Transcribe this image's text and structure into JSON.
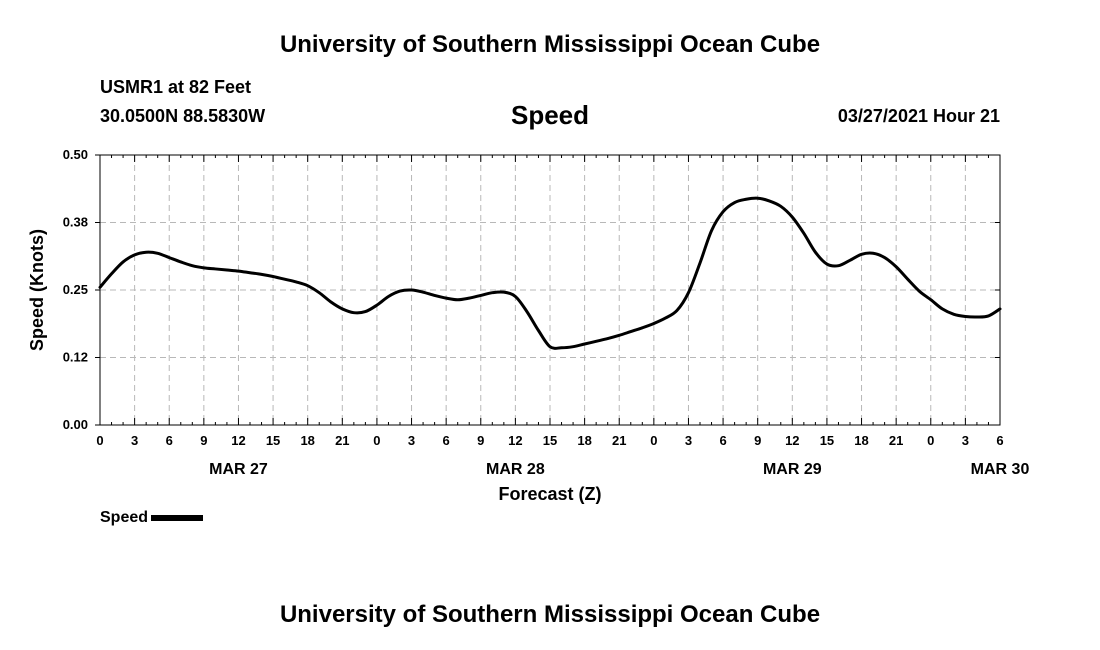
{
  "header": {
    "title": "University of Southern Mississippi Ocean Cube",
    "station": "USMR1 at 82 Feet",
    "coordinates": "30.0500N  88.5830W",
    "variable": "Speed",
    "timestamp": "03/27/2021 Hour 21"
  },
  "footer": {
    "title": "University of Southern Mississippi Ocean Cube"
  },
  "legend": {
    "label": "Speed"
  },
  "colors": {
    "line": "#000000",
    "grid": "#b8b8b8"
  },
  "chart_data": {
    "type": "line",
    "title": "Speed",
    "xlabel": "Forecast (Z)",
    "ylabel": "Speed (Knots)",
    "xlim": [
      0,
      78
    ],
    "ylim": [
      0,
      0.5
    ],
    "grid": true,
    "legend_position": "bottom-left",
    "x_tick_step": 3,
    "x_tick_labels": [
      "0",
      "3",
      "6",
      "9",
      "12",
      "15",
      "18",
      "21",
      "0",
      "3",
      "6",
      "9",
      "12",
      "15",
      "18",
      "21",
      "0",
      "3",
      "6",
      "9",
      "12",
      "15",
      "18",
      "21",
      "0",
      "3",
      "6"
    ],
    "y_ticks": [
      0.0,
      0.125,
      0.25,
      0.375,
      0.5
    ],
    "y_tick_labels": [
      "0.00",
      "0.12",
      "0.25",
      "0.38",
      "0.50"
    ],
    "date_labels": [
      {
        "x": 12,
        "label": "MAR 27"
      },
      {
        "x": 36,
        "label": "MAR 28"
      },
      {
        "x": 60,
        "label": "MAR 29"
      },
      {
        "x": 78,
        "label": "MAR 30"
      }
    ],
    "series": [
      {
        "name": "Speed",
        "x": [
          0,
          1,
          2,
          3,
          4,
          5,
          6,
          7,
          8,
          9,
          10,
          11,
          12,
          13,
          14,
          15,
          16,
          17,
          18,
          19,
          20,
          21,
          22,
          23,
          24,
          25,
          26,
          27,
          28,
          29,
          30,
          31,
          32,
          33,
          34,
          35,
          36,
          37,
          38,
          39,
          40,
          41,
          42,
          43,
          44,
          45,
          46,
          47,
          48,
          49,
          50,
          51,
          52,
          53,
          54,
          55,
          56,
          57,
          58,
          59,
          60,
          61,
          62,
          63,
          64,
          65,
          66,
          67,
          68,
          69,
          70,
          71,
          72,
          73,
          74,
          75,
          76,
          77,
          78
        ],
        "values": [
          0.255,
          0.28,
          0.302,
          0.315,
          0.32,
          0.318,
          0.31,
          0.302,
          0.295,
          0.291,
          0.289,
          0.287,
          0.285,
          0.282,
          0.279,
          0.275,
          0.27,
          0.265,
          0.258,
          0.245,
          0.228,
          0.215,
          0.208,
          0.21,
          0.222,
          0.238,
          0.248,
          0.25,
          0.246,
          0.24,
          0.235,
          0.232,
          0.235,
          0.24,
          0.245,
          0.246,
          0.238,
          0.21,
          0.175,
          0.145,
          0.143,
          0.145,
          0.15,
          0.155,
          0.16,
          0.166,
          0.173,
          0.18,
          0.188,
          0.198,
          0.212,
          0.245,
          0.3,
          0.36,
          0.395,
          0.412,
          0.418,
          0.42,
          0.415,
          0.405,
          0.385,
          0.355,
          0.32,
          0.298,
          0.295,
          0.305,
          0.316,
          0.318,
          0.31,
          0.293,
          0.27,
          0.248,
          0.232,
          0.215,
          0.205,
          0.201,
          0.2,
          0.202,
          0.215
        ]
      }
    ]
  }
}
